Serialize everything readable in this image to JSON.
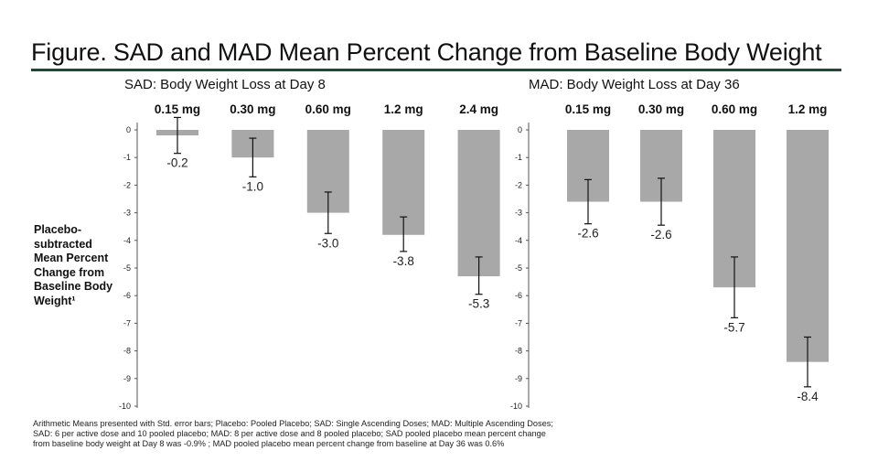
{
  "figure": {
    "title": "Figure. SAD and MAD Mean Percent Change from Baseline Body Weight",
    "y_axis_label": [
      "Placebo-",
      "subtracted",
      "Mean Percent",
      "Change from",
      "Baseline Body",
      "Weight¹"
    ],
    "footnote": "Arithmetic Means presented with Std. error bars; Placebo: Pooled Placebo; SAD: Single Ascending Doses; MAD: Multiple Ascending Doses; SAD: 6 per active dose and 10 pooled placebo; MAD: 8 per active dose and 8 pooled placebo; SAD pooled placebo mean percent change from baseline body weight at Day 8 was -0.9% ; MAD pooled placebo mean percent change from baseline at Day 36 was 0.6%",
    "colors": {
      "bar": "#a8a8a8",
      "rule": "#1c4a33",
      "axis": "#555555",
      "text": "#111111"
    }
  },
  "chart_data": [
    {
      "type": "bar",
      "title": "SAD: Body Weight Loss at Day 8",
      "ylabel": "Placebo-subtracted Mean Percent Change from Baseline Body Weight¹",
      "ylim": [
        -10,
        0
      ],
      "yticks": [
        0,
        -1,
        -2,
        -3,
        -4,
        -5,
        -6,
        -7,
        -8,
        -9,
        -10
      ],
      "categories": [
        "0.15 mg",
        "0.30 mg",
        "0.60 mg",
        "1.2 mg",
        "2.4 mg"
      ],
      "values": [
        -0.2,
        -1.0,
        -3.0,
        -3.8,
        -5.3
      ],
      "labels": [
        "-0.2",
        "-1.0",
        "-3.0",
        "-3.8",
        "-5.3"
      ],
      "error_low": [
        -0.85,
        -1.7,
        -3.75,
        -4.4,
        -5.95
      ],
      "error_high": [
        0.45,
        -0.3,
        -2.25,
        -3.15,
        -4.6
      ],
      "label_position": "below error bar"
    },
    {
      "type": "bar",
      "title": "MAD: Body Weight Loss at Day 36",
      "ylim": [
        -10,
        0
      ],
      "yticks": [
        0,
        -1,
        -2,
        -3,
        -4,
        -5,
        -6,
        -7,
        -8,
        -9,
        -10
      ],
      "categories": [
        "0.15 mg",
        "0.30 mg",
        "0.60 mg",
        "1.2 mg"
      ],
      "values": [
        -2.6,
        -2.6,
        -5.7,
        -8.4
      ],
      "labels": [
        "-2.6",
        "-2.6",
        "-5.7",
        "-8.4"
      ],
      "error_low": [
        -3.4,
        -3.45,
        -6.8,
        -9.3
      ],
      "error_high": [
        -1.8,
        -1.75,
        -4.6,
        -7.5
      ],
      "label_position": "below error bar"
    }
  ]
}
